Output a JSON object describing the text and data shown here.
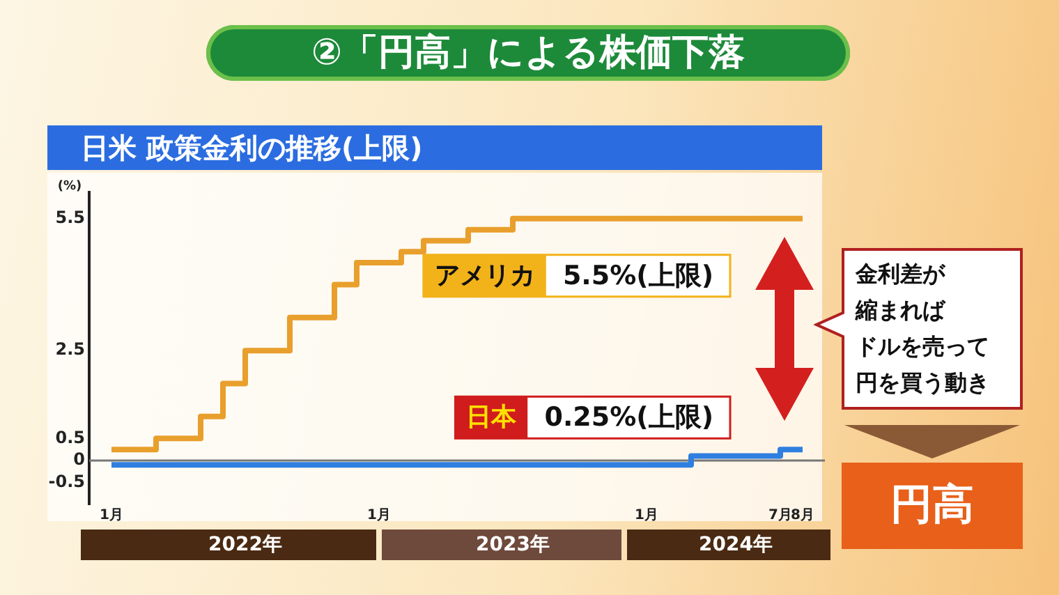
{
  "chart_data": {
    "type": "step",
    "title": "②「円高」による株価下落",
    "subtitle": "日米 政策金利の推移(上限)",
    "ylabel": "(%)",
    "annotations": [
      "5.5%(上限)",
      "0.25%(上限)",
      "金利差が",
      "縮まれば",
      "ドルを売って",
      "円を買う動き",
      "円高"
    ],
    "series": [
      {
        "name": "アメリカ",
        "color": "#e89f2c",
        "x": [
          "2022-01",
          "2022-03",
          "2022-05",
          "2022-06",
          "2022-07",
          "2022-09",
          "2022-11",
          "2022-12",
          "2023-02",
          "2023-03",
          "2023-05",
          "2023-07",
          "2024-08"
        ],
        "values": [
          0.25,
          0.5,
          1.0,
          1.75,
          2.5,
          3.25,
          4.0,
          4.5,
          4.75,
          5.0,
          5.25,
          5.5,
          5.5
        ]
      },
      {
        "name": "日本",
        "color": "#2f7fe0",
        "x": [
          "2022-01",
          "2024-03",
          "2024-07",
          "2024-08"
        ],
        "values": [
          -0.1,
          0.1,
          0.25,
          0.25
        ]
      }
    ],
    "xlim": [
      "2021-12",
      "2024-09"
    ],
    "xticks": [
      {
        "value": "2022-01",
        "label": "1月"
      },
      {
        "value": "2023-01",
        "label": "1月"
      },
      {
        "value": "2024-01",
        "label": "1月"
      },
      {
        "value": "2024-07",
        "label": "7月"
      },
      {
        "value": "2024-08",
        "label": "8月"
      }
    ],
    "x2lim": [
      "2021-12",
      "2024-09"
    ],
    "x2ticks": [
      {
        "value": "2022-07",
        "label": "2022年"
      },
      {
        "value": "2023-07",
        "label": "2023年"
      },
      {
        "value": "2024-05",
        "label": "2024年"
      }
    ],
    "ylim": [
      -1,
      6.1
    ],
    "yticks": [
      -0.5,
      0,
      0.5,
      2.5,
      5.5
    ],
    "ref_lines": [
      {
        "axis": "y",
        "value": 0,
        "color": "#777777"
      }
    ],
    "grid": false,
    "legend": false,
    "marker": "none",
    "line_style": "solid"
  }
}
